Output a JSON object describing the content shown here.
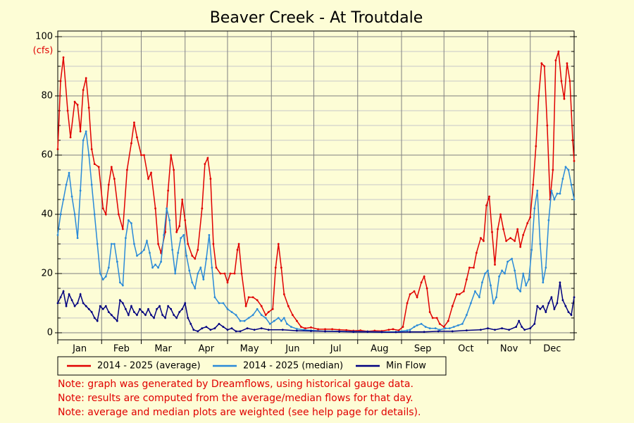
{
  "chart_data": {
    "type": "line",
    "title": "Beaver Creek - At Troutdale",
    "y_label": "(cfs)",
    "xlim": [
      1,
      366
    ],
    "xticks": [
      {
        "value": 1,
        "label": "Jan"
      },
      {
        "value": 32,
        "label": "Feb"
      },
      {
        "value": 60,
        "label": "Mar"
      },
      {
        "value": 91,
        "label": "Apr"
      },
      {
        "value": 121,
        "label": "May"
      },
      {
        "value": 152,
        "label": "Jun"
      },
      {
        "value": 182,
        "label": "Jul"
      },
      {
        "value": 213,
        "label": "Aug"
      },
      {
        "value": 244,
        "label": "Sep"
      },
      {
        "value": 274,
        "label": "Oct"
      },
      {
        "value": 305,
        "label": "Nov"
      },
      {
        "value": 335,
        "label": "Dec"
      }
    ],
    "ylim": [
      0,
      100
    ],
    "yticks": [
      0,
      20,
      40,
      60,
      80,
      100
    ],
    "minor_yticks": [
      5,
      10,
      15,
      25,
      30,
      35,
      45,
      50,
      55,
      65,
      70,
      75,
      85,
      90,
      95
    ],
    "grid": true,
    "series": [
      {
        "name": "2014 - 2025 (average)",
        "color": "#e00000",
        "x": [
          1,
          3,
          5,
          8,
          10,
          13,
          15,
          17,
          19,
          21,
          23,
          25,
          27,
          30,
          33,
          35,
          37,
          39,
          41,
          44,
          47,
          50,
          53,
          55,
          57,
          60,
          62,
          65,
          67,
          70,
          72,
          74,
          77,
          79,
          81,
          83,
          85,
          87,
          89,
          91,
          93,
          96,
          98,
          100,
          103,
          105,
          107,
          109,
          111,
          113,
          116,
          119,
          121,
          123,
          126,
          128,
          129,
          131,
          134,
          136,
          139,
          142,
          145,
          148,
          150,
          153,
          155,
          157,
          159,
          161,
          164,
          167,
          170,
          173,
          176,
          180,
          185,
          190,
          195,
          200,
          205,
          210,
          215,
          220,
          225,
          230,
          235,
          238,
          242,
          245,
          248,
          250,
          253,
          255,
          258,
          260,
          262,
          264,
          266,
          269,
          271,
          274,
          277,
          280,
          283,
          285,
          288,
          290,
          292,
          295,
          297,
          300,
          302,
          304,
          306,
          308,
          310,
          312,
          314,
          316,
          318,
          321,
          324,
          326,
          328,
          330,
          333,
          335,
          337,
          339,
          341,
          343,
          345,
          347,
          349,
          351,
          353,
          355,
          357,
          359,
          361,
          363,
          365,
          366
        ],
        "values": [
          62,
          85,
          93,
          75,
          66,
          78,
          77,
          68,
          82,
          86,
          76,
          62,
          57,
          56,
          42,
          40,
          50,
          56,
          52,
          40,
          35,
          55,
          64,
          71,
          66,
          60,
          60,
          52,
          54,
          42,
          30,
          27,
          34,
          48,
          60,
          55,
          34,
          36,
          45,
          38,
          30,
          26,
          25,
          28,
          42,
          57,
          59,
          52,
          30,
          22,
          20,
          20,
          17,
          20,
          20,
          28,
          30,
          20,
          9,
          12,
          12,
          11,
          9,
          6,
          7,
          8,
          22,
          30,
          22,
          13,
          9,
          6,
          4,
          2,
          1.5,
          1.8,
          1.2,
          1.2,
          1.2,
          1,
          0.9,
          0.7,
          0.8,
          0.5,
          0.7,
          0.6,
          1,
          1.2,
          0.8,
          2,
          10,
          13,
          14,
          12,
          17,
          19,
          15,
          7,
          5,
          5,
          3,
          2,
          4,
          9,
          13,
          13,
          14,
          18,
          22,
          22,
          27,
          32,
          31,
          43,
          46,
          34,
          23,
          35,
          40,
          35,
          31,
          32,
          31,
          35,
          29,
          33,
          37,
          39,
          50,
          63,
          80,
          91,
          90,
          70,
          45,
          55,
          92,
          95,
          85,
          79,
          91,
          85,
          65,
          58
        ]
      },
      {
        "name": "2014 - 2025 (median)",
        "color": "#2a8ad8",
        "x": [
          1,
          3,
          5,
          7,
          9,
          11,
          13,
          15,
          17,
          19,
          21,
          23,
          25,
          27,
          29,
          31,
          33,
          35,
          37,
          39,
          41,
          43,
          45,
          47,
          49,
          51,
          53,
          55,
          57,
          60,
          62,
          64,
          66,
          68,
          70,
          72,
          74,
          76,
          78,
          80,
          82,
          84,
          86,
          88,
          90,
          92,
          94,
          96,
          98,
          100,
          102,
          104,
          106,
          108,
          110,
          112,
          115,
          118,
          121,
          124,
          127,
          130,
          133,
          136,
          139,
          142,
          145,
          148,
          151,
          154,
          157,
          159,
          161,
          163,
          166,
          170,
          175,
          180,
          190,
          200,
          210,
          220,
          230,
          240,
          248,
          250,
          253,
          255,
          258,
          261,
          264,
          268,
          271,
          275,
          278,
          281,
          284,
          287,
          290,
          293,
          296,
          299,
          301,
          303,
          305,
          307,
          309,
          311,
          313,
          315,
          317,
          319,
          322,
          324,
          326,
          328,
          330,
          332,
          334,
          336,
          338,
          340,
          342,
          344,
          346,
          348,
          350,
          352,
          354,
          356,
          358,
          360,
          362,
          364,
          366
        ],
        "values": [
          33,
          40,
          45,
          50,
          54,
          46,
          40,
          32,
          48,
          65,
          68,
          60,
          50,
          40,
          30,
          20,
          18,
          19,
          22,
          30,
          30,
          24,
          17,
          16,
          32,
          38,
          37,
          30,
          26,
          27,
          28,
          31,
          27,
          22,
          23,
          22,
          24,
          33,
          42,
          38,
          28,
          20,
          27,
          32,
          33,
          26,
          21,
          17,
          15,
          20,
          22,
          18,
          25,
          33,
          22,
          12,
          10,
          10,
          8,
          7,
          6,
          4,
          4,
          5,
          6,
          8,
          6,
          5,
          3,
          4,
          5,
          4,
          5,
          3,
          2,
          1.3,
          1,
          0.8,
          0.5,
          0.5,
          0.4,
          0.4,
          0.3,
          0.3,
          0.8,
          1,
          2,
          2.5,
          3,
          2,
          1.5,
          1.5,
          1,
          1.5,
          1.5,
          2,
          2.5,
          3,
          6,
          10,
          14,
          12,
          17,
          20,
          21,
          16,
          10,
          12,
          19,
          21,
          20,
          24,
          25,
          21,
          15,
          14,
          20,
          16,
          18,
          28,
          42,
          48,
          30,
          17,
          22,
          38,
          48,
          45,
          47,
          47,
          52,
          56,
          55,
          50,
          45
        ]
      },
      {
        "name": "Min Flow",
        "color": "#000080",
        "x": [
          1,
          3,
          5,
          7,
          9,
          11,
          13,
          15,
          17,
          19,
          21,
          23,
          25,
          27,
          29,
          31,
          33,
          35,
          37,
          39,
          41,
          43,
          45,
          47,
          49,
          51,
          53,
          55,
          57,
          59,
          61,
          63,
          65,
          67,
          69,
          71,
          73,
          75,
          77,
          79,
          81,
          83,
          85,
          87,
          89,
          91,
          93,
          95,
          97,
          100,
          103,
          106,
          109,
          112,
          115,
          118,
          121,
          124,
          127,
          130,
          135,
          140,
          145,
          150,
          160,
          170,
          180,
          190,
          200,
          210,
          220,
          230,
          240,
          250,
          260,
          270,
          280,
          290,
          300,
          305,
          310,
          315,
          320,
          325,
          327,
          329,
          331,
          335,
          338,
          340,
          342,
          344,
          346,
          348,
          350,
          352,
          354,
          356,
          358,
          360,
          362,
          364,
          366
        ],
        "values": [
          10,
          12,
          14,
          9,
          13,
          11,
          9,
          10,
          13,
          10,
          9,
          8,
          7,
          5,
          4,
          9,
          8,
          9,
          7,
          6,
          5,
          4,
          11,
          10,
          8,
          6,
          9,
          7,
          6,
          8,
          7,
          6,
          8,
          6,
          5,
          8,
          9,
          6,
          5,
          9,
          8,
          6,
          5,
          7,
          8,
          10,
          5,
          3,
          1,
          0.5,
          1.5,
          2,
          1,
          1.5,
          3,
          2,
          1,
          1.5,
          0.5,
          0.5,
          1.5,
          1,
          1.5,
          1,
          1,
          0.7,
          0.6,
          0.5,
          0.4,
          0.3,
          0.3,
          0.2,
          0.2,
          0.3,
          0.3,
          0.5,
          0.5,
          0.8,
          1,
          1.5,
          1,
          1.5,
          1,
          2,
          4,
          2,
          1,
          1.5,
          3,
          9,
          8,
          9,
          7,
          10,
          12,
          8,
          10,
          17,
          11,
          9,
          7,
          6,
          12
        ]
      }
    ],
    "notes": [
      "Note: graph was generated by Dreamflows, using historical gauge data.",
      "Note: results are computed from the average/median flows for that day.",
      "Note: average and median plots are weighted (see help page for details)."
    ]
  }
}
